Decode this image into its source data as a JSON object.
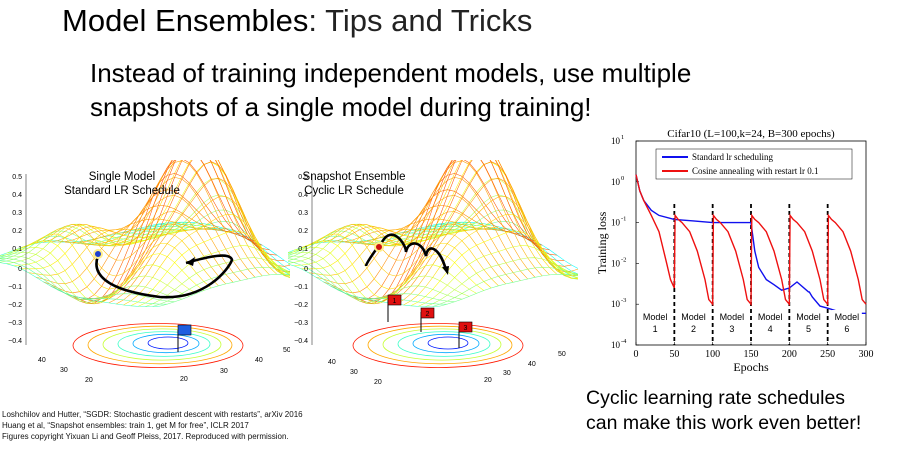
{
  "title": {
    "main": "Model Ensembles",
    "rest": ": Tips and Tricks"
  },
  "subtitle": {
    "line1": "Instead of training independent models, use multiple",
    "line2": "snapshots of a single model during training!"
  },
  "figure_left": {
    "title_line1": "Single Model",
    "title_line2": "Standard LR Schedule",
    "zticks": [
      "0.5",
      "0.4",
      "0.3",
      "0.2",
      "0.1",
      "0",
      "−0.1",
      "−0.2",
      "−0.3",
      "−0.4"
    ],
    "axis_ticks": [
      "50",
      "40",
      "30",
      "20",
      "40",
      "30",
      "20"
    ],
    "flag_color": "#1f5fe0"
  },
  "figure_middle": {
    "title_line1": "Snapshot Ensemble",
    "title_line2": "Cyclic LR Schedule",
    "zticks": [
      "0.5",
      "0.4",
      "0.3",
      "0.2",
      "0.1",
      "0",
      "−0.1",
      "−0.2",
      "−0.3",
      "−0.4"
    ],
    "axis_ticks": [
      "50",
      "40",
      "30",
      "20",
      "40",
      "30",
      "20"
    ],
    "flags": [
      "1",
      "2",
      "3"
    ],
    "flag_color": "#e01010"
  },
  "chart_data": {
    "type": "line",
    "title": "Cifar10 (L=100,k=24, B=300 epochs)",
    "xlabel": "Epochs",
    "ylabel": "Training loss",
    "xlim": [
      0,
      300
    ],
    "ylim_log10": [
      -4,
      1
    ],
    "log_y": true,
    "xticks": [
      0,
      50,
      100,
      150,
      200,
      250,
      300
    ],
    "yticks": [
      {
        "base": "10",
        "exp": "1"
      },
      {
        "base": "10",
        "exp": "0"
      },
      {
        "base": "10",
        "exp": "-1"
      },
      {
        "base": "10",
        "exp": "-2"
      },
      {
        "base": "10",
        "exp": "-3"
      },
      {
        "base": "10",
        "exp": "-4"
      }
    ],
    "legend_position": "top-center",
    "series": [
      {
        "name": "Standard lr scheduling",
        "color": "#1010ee",
        "x": [
          0,
          5,
          10,
          20,
          30,
          50,
          75,
          100,
          125,
          150,
          155,
          160,
          170,
          180,
          190,
          200,
          210,
          225,
          226,
          230,
          240,
          250,
          260,
          270,
          280,
          290,
          300
        ],
        "y": [
          1.5,
          0.6,
          0.35,
          0.2,
          0.15,
          0.12,
          0.11,
          0.1,
          0.1,
          0.1,
          0.02,
          0.008,
          0.004,
          0.003,
          0.0022,
          0.0025,
          0.0035,
          0.002,
          0.002,
          0.0015,
          0.0009,
          0.0008,
          0.0007,
          0.0006,
          0.0006,
          0.0006,
          0.0006
        ]
      },
      {
        "name": "Cosine annealing with restart lr 0.1",
        "color": "#ee1010",
        "x": [
          0,
          5,
          10,
          20,
          30,
          40,
          45,
          50,
          51,
          55,
          60,
          70,
          80,
          90,
          95,
          100,
          101,
          105,
          110,
          120,
          130,
          140,
          145,
          150,
          151,
          155,
          160,
          170,
          180,
          190,
          195,
          200,
          201,
          205,
          210,
          220,
          230,
          240,
          245,
          250,
          251,
          255,
          260,
          270,
          280,
          290,
          295,
          300
        ],
        "y": [
          1.5,
          0.6,
          0.35,
          0.15,
          0.06,
          0.01,
          0.004,
          0.0025,
          0.15,
          0.12,
          0.1,
          0.06,
          0.02,
          0.004,
          0.0013,
          0.001,
          0.15,
          0.12,
          0.1,
          0.06,
          0.02,
          0.004,
          0.0013,
          0.001,
          0.15,
          0.12,
          0.1,
          0.06,
          0.02,
          0.004,
          0.0013,
          0.001,
          0.15,
          0.12,
          0.1,
          0.06,
          0.02,
          0.004,
          0.0013,
          0.001,
          0.15,
          0.12,
          0.1,
          0.06,
          0.02,
          0.004,
          0.0013,
          0.001
        ]
      }
    ],
    "restart_epochs": [
      50,
      100,
      150,
      200,
      250
    ],
    "model_labels": [
      {
        "name": "Model",
        "num": "1"
      },
      {
        "name": "Model",
        "num": "2"
      },
      {
        "name": "Model",
        "num": "3"
      },
      {
        "name": "Model",
        "num": "4"
      },
      {
        "name": "Model",
        "num": "5"
      },
      {
        "name": "Model",
        "num": "6"
      }
    ]
  },
  "references": {
    "line1": "Loshchilov and Hutter, “SGDR: Stochastic gradient descent with restarts”, arXiv 2016",
    "line2": "Huang et al, “Snapshot ensembles: train 1, get M for free”, ICLR 2017",
    "line3": "Figures copyright Yixuan Li and Geoff Pleiss, 2017. Reproduced with permission."
  },
  "caption": {
    "line1": "Cyclic learning rate schedules",
    "line2": "can make this work even better!"
  }
}
